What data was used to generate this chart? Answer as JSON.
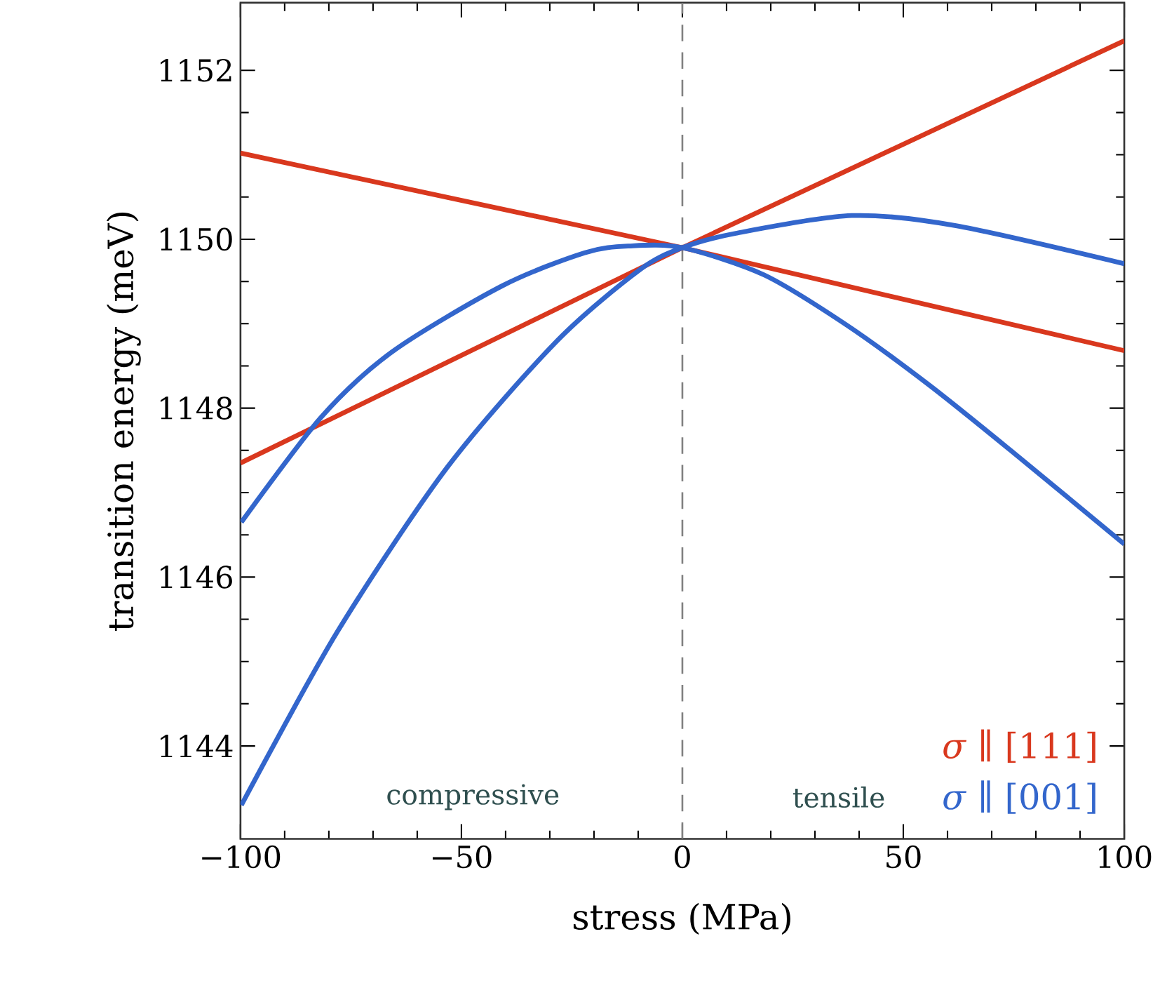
{
  "chart_data": {
    "type": "line",
    "xlabel": "stress (MPa)",
    "ylabel": "transition energy (meV)",
    "xlim": [
      -100,
      100
    ],
    "ylim": [
      1142.9,
      1152.8
    ],
    "xticks": [
      {
        "value": -100,
        "label": "−100"
      },
      {
        "value": -50,
        "label": "−50"
      },
      0,
      50,
      100
    ],
    "yticks": [
      1144,
      1146,
      1148,
      1150,
      1152
    ],
    "grid": false,
    "legend": "bottom right",
    "marker": "none",
    "line_style": "solid",
    "series": [
      {
        "name": "*σ* ∥ [111]",
        "color": "#d9381e",
        "x": [
          -100,
          0,
          100
        ],
        "values": [
          1151.02,
          1149.9,
          1148.68
        ]
      },
      {
        "color": "#d9381e",
        "x": [
          -100,
          0,
          100
        ],
        "values": [
          1147.35,
          1149.9,
          1152.35
        ]
      },
      {
        "name": "*σ* ∥ [001]",
        "color": "#3366cc",
        "x": [
          -99.8,
          -78.1,
          -53.2,
          -28.3,
          -9.6,
          0,
          12.1,
          38.3,
          61.9,
          100
        ],
        "values": [
          1143.3,
          1145.35,
          1147.3,
          1148.8,
          1149.64,
          1149.9,
          1150.07,
          1150.28,
          1150.16,
          1149.71
        ]
      },
      {
        "color": "#3366cc",
        "x": [
          -99.8,
          -81.8,
          -65.6,
          -40.7,
          -22.1,
          -12,
          0,
          18.4,
          37,
          55.7,
          74.3,
          100
        ],
        "values": [
          1146.65,
          1147.89,
          1148.67,
          1149.45,
          1149.84,
          1149.92,
          1149.9,
          1149.58,
          1148.99,
          1148.28,
          1147.5,
          1146.39
        ]
      }
    ],
    "ref_lines": [
      {
        "axis": "x",
        "value": 0,
        "color": "#808080",
        "line_style": "dashed"
      }
    ],
    "annotations": [
      "compressive",
      "tensile"
    ]
  }
}
